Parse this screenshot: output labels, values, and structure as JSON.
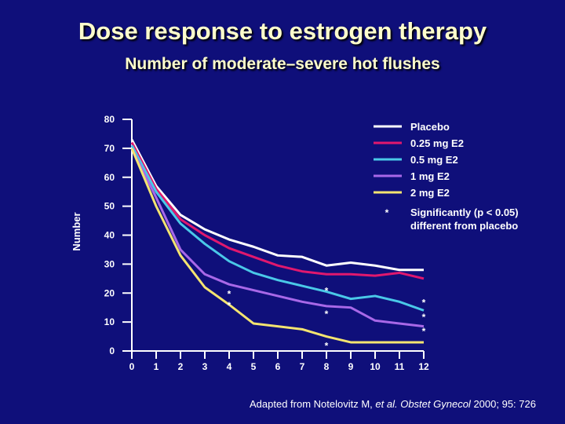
{
  "slide": {
    "title": "Dose response to estrogen therapy",
    "subtitle": "Number of moderate–severe hot flushes",
    "citation_prefix": "Adapted from Notelovitz M, ",
    "citation_etal": "et al.",
    "citation_journal": "Obstet Gynecol",
    "citation_suffix": " 2000; 95: 726"
  },
  "chart_data": {
    "type": "line",
    "title": "",
    "xlabel": "",
    "ylabel": "Number",
    "x": [
      0,
      1,
      2,
      3,
      4,
      5,
      6,
      7,
      8,
      9,
      10,
      11,
      12
    ],
    "xticks": [
      "0",
      "1",
      "2",
      "3",
      "4",
      "5",
      "6",
      "7",
      "8",
      "9",
      "10",
      "11",
      "12"
    ],
    "yticks": [
      "0",
      "10",
      "20",
      "30",
      "40",
      "50",
      "60",
      "70",
      "80"
    ],
    "ylim": [
      0,
      80
    ],
    "xlim": [
      0,
      12
    ],
    "grid": false,
    "legend_position": "top-right",
    "series": [
      {
        "name": "Placebo",
        "color": "#ffffff",
        "values": [
          73,
          57,
          47,
          42,
          38.5,
          36,
          33,
          32.5,
          29.5,
          30.5,
          29.5,
          28,
          28
        ]
      },
      {
        "name": "0.25 mg E2",
        "color": "#e0186e",
        "values": [
          72,
          56,
          45.5,
          40,
          35.5,
          32.5,
          29.5,
          27.5,
          26.5,
          26.5,
          26,
          27,
          25
        ]
      },
      {
        "name": "0.5 mg E2",
        "color": "#4ac8e8",
        "values": [
          71,
          55,
          44,
          37,
          31,
          27,
          24.5,
          22.5,
          20.5,
          18,
          19,
          17,
          14
        ]
      },
      {
        "name": "1 mg E2",
        "color": "#a868e8",
        "values": [
          70,
          53,
          35,
          26.5,
          23,
          21,
          19,
          17,
          15.5,
          15,
          10.5,
          9.5,
          8.5
        ]
      },
      {
        "name": "2 mg E2",
        "color": "#f4e470",
        "values": [
          70,
          50,
          33,
          22,
          16,
          9.5,
          8.5,
          7.5,
          5,
          3,
          3,
          3,
          3
        ]
      }
    ],
    "significance_note": "Significantly (p < 0.05) different from placebo",
    "significance_marker": "*",
    "significance_points": [
      {
        "x": 4,
        "y": 20
      },
      {
        "x": 4,
        "y": 16
      },
      {
        "x": 8,
        "y": 21
      },
      {
        "x": 8,
        "y": 13
      },
      {
        "x": 8,
        "y": 2
      },
      {
        "x": 12,
        "y": 17
      },
      {
        "x": 12,
        "y": 12
      },
      {
        "x": 12,
        "y": 7
      }
    ]
  }
}
